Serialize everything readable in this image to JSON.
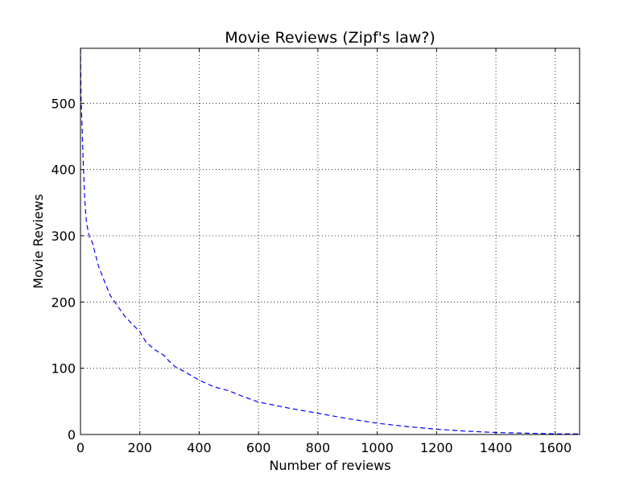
{
  "chart_data": {
    "type": "line",
    "title": "Movie Reviews (Zipf's law?)",
    "xlabel": "Number of reviews",
    "ylabel": "Movie Reviews",
    "xlim": [
      0,
      1682
    ],
    "ylim": [
      0,
      583
    ],
    "xticks": [
      0,
      200,
      400,
      600,
      800,
      1000,
      1200,
      1400,
      1600
    ],
    "yticks": [
      0,
      100,
      200,
      300,
      400,
      500
    ],
    "grid": true,
    "series": [
      {
        "color": "#0000ff",
        "linestyle": "dashed",
        "x": [
          0,
          1,
          2,
          5,
          10,
          15,
          20,
          30,
          40,
          60,
          80,
          100,
          150,
          200,
          220,
          250,
          280,
          300,
          320,
          350,
          400,
          450,
          500,
          550,
          600,
          700,
          800,
          900,
          1000,
          1100,
          1200,
          1300,
          1400,
          1500,
          1600,
          1682
        ],
        "y": [
          583,
          540,
          505,
          470,
          400,
          350,
          320,
          298,
          290,
          255,
          232,
          210,
          178,
          155,
          140,
          128,
          120,
          110,
          102,
          95,
          82,
          72,
          66,
          57,
          49,
          40,
          32,
          24,
          17,
          12,
          8,
          5,
          3,
          2,
          1,
          1
        ]
      }
    ]
  }
}
